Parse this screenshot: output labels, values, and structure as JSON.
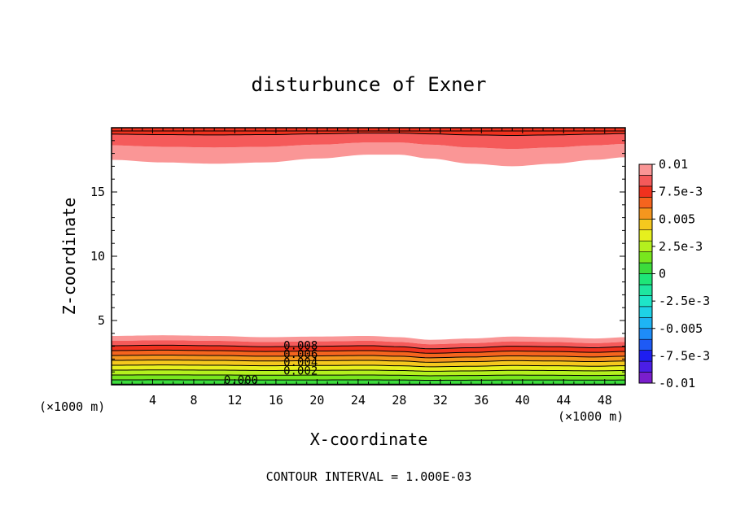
{
  "chart_data": {
    "type": "contour",
    "title": "disturbunce of Exner",
    "xlabel": "X-coordinate",
    "ylabel": "Z-coordinate",
    "x_unit": "(×1000 m)",
    "y_unit": "(×1000 m)",
    "xlim": [
      0,
      50
    ],
    "ylim": [
      0,
      20
    ],
    "x_ticks": [
      4,
      8,
      12,
      16,
      20,
      24,
      28,
      32,
      36,
      40,
      44,
      48
    ],
    "y_ticks": [
      5,
      10,
      15
    ],
    "contour_interval_text": "CONTOUR INTERVAL = 1.000E-03",
    "colorbar": {
      "ticks": [
        {
          "label": "0.01",
          "value": 0.01
        },
        {
          "label": "7.5e-3",
          "value": 0.0075
        },
        {
          "label": "0.005",
          "value": 0.005
        },
        {
          "label": "2.5e-3",
          "value": 0.0025
        },
        {
          "label": "0",
          "value": 0
        },
        {
          "label": "-2.5e-3",
          "value": -0.0025
        },
        {
          "label": "-0.005",
          "value": -0.005
        },
        {
          "label": "-7.5e-3",
          "value": -0.0075
        },
        {
          "label": "-0.01",
          "value": -0.01
        }
      ],
      "bands": [
        {
          "from": -0.01,
          "to": -0.009,
          "color": "#7a1ecc"
        },
        {
          "from": -0.009,
          "to": -0.008,
          "color": "#4b1ee6"
        },
        {
          "from": -0.008,
          "to": -0.007,
          "color": "#1e1ef0"
        },
        {
          "from": -0.007,
          "to": -0.006,
          "color": "#1e5af5"
        },
        {
          "from": -0.006,
          "to": -0.005,
          "color": "#1e8cf8"
        },
        {
          "from": -0.005,
          "to": -0.004,
          "color": "#1eb4f5"
        },
        {
          "from": -0.004,
          "to": -0.003,
          "color": "#1ed2e6"
        },
        {
          "from": -0.003,
          "to": -0.002,
          "color": "#1ee6c8"
        },
        {
          "from": -0.002,
          "to": -0.001,
          "color": "#1ee6a0"
        },
        {
          "from": -0.001,
          "to": 0.0,
          "color": "#1ee678"
        },
        {
          "from": 0.0,
          "to": 0.001,
          "color": "#3cdc3c"
        },
        {
          "from": 0.001,
          "to": 0.002,
          "color": "#78e61e"
        },
        {
          "from": 0.002,
          "to": 0.003,
          "color": "#b4f01e"
        },
        {
          "from": 0.003,
          "to": 0.004,
          "color": "#e6f01e"
        },
        {
          "from": 0.004,
          "to": 0.005,
          "color": "#f5c81e"
        },
        {
          "from": 0.005,
          "to": 0.006,
          "color": "#f5961e"
        },
        {
          "from": 0.006,
          "to": 0.007,
          "color": "#f5641e"
        },
        {
          "from": 0.007,
          "to": 0.008,
          "color": "#f0321e"
        },
        {
          "from": 0.008,
          "to": 0.009,
          "color": "#f55a5a"
        },
        {
          "from": 0.009,
          "to": 0.01,
          "color": "#fa9696"
        }
      ]
    },
    "contour_labels": [
      "0.008",
      "0.006",
      "0.004",
      "0.002",
      "0.000"
    ],
    "upper_layer": {
      "z_base_profile": {
        "x": [
          0,
          5,
          10,
          15,
          20,
          25,
          28,
          31,
          35,
          39,
          43,
          47,
          50
        ],
        "z": [
          17.5,
          17.3,
          17.2,
          17.3,
          17.6,
          17.9,
          17.9,
          17.6,
          17.2,
          17.0,
          17.2,
          17.5,
          17.7
        ]
      },
      "band_values": [
        0.0095,
        0.0085,
        0.0075
      ],
      "band_fractions": [
        0.0,
        0.45,
        0.8,
        1.0
      ]
    },
    "lower_layer": {
      "top_profile": {
        "x": [
          0,
          5,
          10,
          15,
          20,
          25,
          28,
          31,
          35,
          39,
          43,
          47,
          50
        ],
        "z": [
          3.8,
          3.85,
          3.8,
          3.7,
          3.75,
          3.8,
          3.7,
          3.5,
          3.6,
          3.75,
          3.7,
          3.6,
          3.7
        ]
      },
      "band_values": [
        0.0095,
        0.0085,
        0.0075,
        0.0065,
        0.0055,
        0.0045,
        0.0035,
        0.0025,
        0.0015,
        0.0005
      ]
    }
  }
}
